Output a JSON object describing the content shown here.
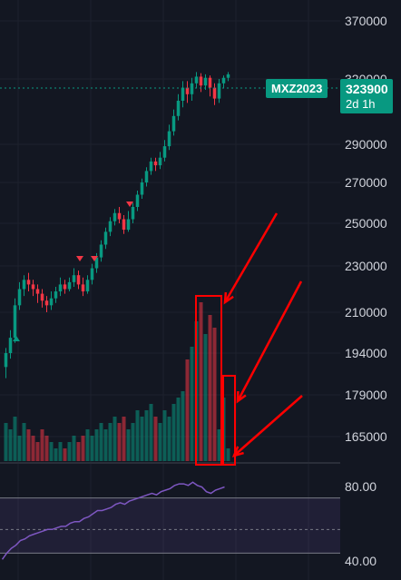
{
  "symbol": "MXZ2023",
  "last_price": "323900",
  "countdown": "2d 1h",
  "colors": {
    "up": "#089981",
    "down": "#f23645",
    "rsi": "#7e57c2",
    "annotation": "#ff0000",
    "background": "#131722"
  },
  "price_axis": {
    "ticks": [
      "370000",
      "320000",
      "290000",
      "270000",
      "250000",
      "230000",
      "210000",
      "194000",
      "179000",
      "165000"
    ]
  },
  "rsi_axis": {
    "ticks": [
      "80.00",
      "40.00"
    ]
  },
  "chart_data": [
    {
      "type": "candlestick",
      "price_ticks": [
        370000,
        320000,
        290000,
        270000,
        250000,
        230000,
        210000,
        194000,
        179000,
        165000
      ],
      "candles": [
        [
          189000,
          194000,
          185000,
          196000
        ],
        [
          194000,
          200000,
          192000,
          203000
        ],
        [
          200000,
          213000,
          198000,
          216000
        ],
        [
          213000,
          220000,
          211000,
          223000
        ],
        [
          220000,
          224000,
          217000,
          226000
        ],
        [
          224000,
          222000,
          219000,
          227000
        ],
        [
          222000,
          220000,
          217000,
          224000
        ],
        [
          220000,
          218000,
          214000,
          222000
        ],
        [
          218000,
          215000,
          212000,
          220000
        ],
        [
          215000,
          213000,
          210000,
          217000
        ],
        [
          213000,
          216000,
          211000,
          219000
        ],
        [
          216000,
          219000,
          214000,
          221000
        ],
        [
          219000,
          222000,
          217000,
          225000
        ],
        [
          222000,
          220000,
          218000,
          224000
        ],
        [
          220000,
          223000,
          219000,
          225000
        ],
        [
          223000,
          226000,
          221000,
          229000
        ],
        [
          226000,
          222000,
          220000,
          228000
        ],
        [
          222000,
          219000,
          217000,
          225000
        ],
        [
          219000,
          224000,
          218000,
          226000
        ],
        [
          224000,
          229000,
          222000,
          231000
        ],
        [
          229000,
          234000,
          227000,
          236000
        ],
        [
          234000,
          240000,
          232000,
          242000
        ],
        [
          240000,
          246000,
          238000,
          248000
        ],
        [
          246000,
          251000,
          244000,
          253000
        ],
        [
          251000,
          255000,
          249000,
          257000
        ],
        [
          255000,
          252000,
          250000,
          258000
        ],
        [
          252000,
          247000,
          245000,
          254000
        ],
        [
          247000,
          252000,
          246000,
          256000
        ],
        [
          252000,
          258000,
          250000,
          260000
        ],
        [
          258000,
          264000,
          256000,
          266000
        ],
        [
          264000,
          270000,
          262000,
          272000
        ],
        [
          270000,
          276000,
          268000,
          278000
        ],
        [
          276000,
          281000,
          274000,
          283000
        ],
        [
          281000,
          279000,
          276000,
          283000
        ],
        [
          279000,
          283000,
          277000,
          286000
        ],
        [
          283000,
          289000,
          281000,
          292000
        ],
        [
          289000,
          296000,
          287000,
          299000
        ],
        [
          296000,
          303000,
          294000,
          306000
        ],
        [
          303000,
          310000,
          301000,
          313000
        ],
        [
          310000,
          316000,
          307000,
          319000
        ],
        [
          316000,
          313000,
          309000,
          319000
        ],
        [
          313000,
          318000,
          310000,
          321000
        ],
        [
          318000,
          322000,
          316000,
          326000
        ],
        [
          322000,
          317000,
          314000,
          325000
        ],
        [
          317000,
          321000,
          315000,
          324000
        ],
        [
          321000,
          316000,
          312000,
          323000
        ],
        [
          316000,
          311000,
          308000,
          318000
        ],
        [
          311000,
          318000,
          309000,
          320000
        ],
        [
          318000,
          321000,
          316000,
          323000
        ],
        [
          321000,
          324000,
          319000,
          326000
        ]
      ]
    },
    {
      "type": "bar",
      "name": "volume",
      "values": [
        6,
        5,
        7,
        4,
        6,
        5,
        4,
        3,
        5,
        4,
        3,
        2,
        3,
        2,
        3,
        4,
        3,
        4,
        5,
        4,
        5,
        6,
        5,
        6,
        7,
        6,
        7,
        5,
        6,
        8,
        7,
        8,
        9,
        7,
        6,
        8,
        7,
        9,
        10,
        11,
        16,
        18,
        22,
        25,
        20,
        23,
        21,
        5,
        10,
        2
      ]
    },
    {
      "type": "line",
      "name": "rsi",
      "ylim": [
        30,
        90
      ],
      "values": [
        31,
        35,
        38,
        40,
        43,
        44,
        46,
        47,
        48,
        49,
        50,
        50,
        51,
        52,
        52,
        54,
        55,
        55,
        57,
        58,
        60,
        62,
        62,
        63,
        64,
        66,
        67,
        66,
        68,
        69,
        70,
        71,
        72,
        73,
        72,
        74,
        75,
        76,
        78,
        79,
        79,
        78,
        80,
        78,
        77,
        74,
        73,
        75,
        76,
        77
      ],
      "levels": [
        70,
        50,
        35
      ]
    }
  ]
}
